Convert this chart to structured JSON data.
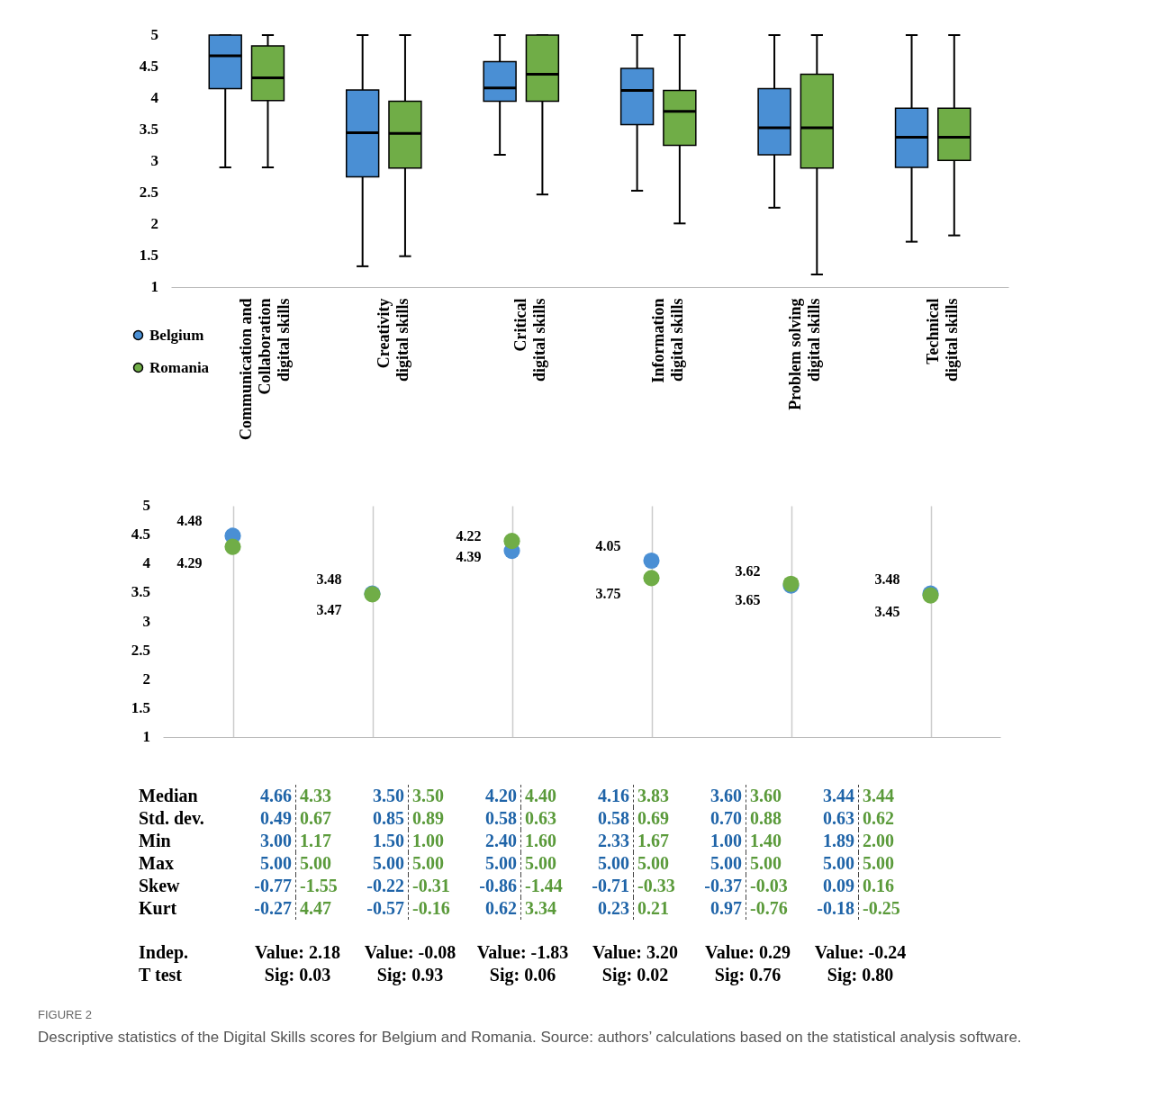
{
  "chart_data": [
    {
      "type": "box",
      "categories": [
        "Communication and\nCollaboration\ndigital skills",
        "Creativity\ndigital skills",
        "Critical\ndigital skills",
        "Information\ndigital skills",
        "Problem solving\ndigital skills",
        "Technical\ndigital skills"
      ],
      "ylim": [
        1,
        5
      ],
      "yticks": [
        1,
        1.5,
        2,
        2.5,
        3,
        3.5,
        4,
        4.5,
        5
      ],
      "legend": "bottom left",
      "series": [
        {
          "name": "Belgium",
          "color": "#4a8fd4",
          "boxes": [
            {
              "low": 2.9,
              "q1": 4.15,
              "median": 4.67,
              "q3": 5,
              "high": 5
            },
            {
              "low": 1.33,
              "q1": 2.75,
              "median": 3.45,
              "q3": 4.13,
              "high": 5
            },
            {
              "low": 3.1,
              "q1": 3.95,
              "median": 4.16,
              "q3": 4.58,
              "high": 5
            },
            {
              "low": 2.53,
              "q1": 3.58,
              "median": 4.12,
              "q3": 4.47,
              "high": 5
            },
            {
              "low": 2.26,
              "q1": 3.1,
              "median": 3.53,
              "q3": 4.15,
              "high": 5
            },
            {
              "low": 1.72,
              "q1": 2.9,
              "median": 3.38,
              "q3": 3.84,
              "high": 5
            }
          ]
        },
        {
          "name": "Romania",
          "color": "#70ad47",
          "boxes": [
            {
              "low": 2.9,
              "q1": 3.96,
              "median": 4.32,
              "q3": 4.83,
              "high": 5
            },
            {
              "low": 1.49,
              "q1": 2.89,
              "median": 3.44,
              "q3": 3.95,
              "high": 5
            },
            {
              "low": 2.47,
              "q1": 3.95,
              "median": 4.38,
              "q3": 5,
              "high": 5
            },
            {
              "low": 2.01,
              "q1": 3.25,
              "median": 3.79,
              "q3": 4.12,
              "high": 5
            },
            {
              "low": 1.2,
              "q1": 2.89,
              "median": 3.53,
              "q3": 4.38,
              "high": 5
            },
            {
              "low": 1.82,
              "q1": 3.01,
              "median": 3.38,
              "q3": 3.84,
              "high": 5
            }
          ]
        }
      ]
    },
    {
      "type": "scatter",
      "categories": [
        null,
        null,
        null,
        null,
        null,
        null
      ],
      "ylim": [
        1,
        5
      ],
      "yticks": [
        1,
        1.5,
        2,
        2.5,
        3,
        3.5,
        4,
        4.5,
        5
      ],
      "grid": "x",
      "marker": "circle",
      "series": [
        {
          "color": "#4a8fd4",
          "values": [
            4.48,
            3.48,
            4.22,
            4.05,
            3.62,
            3.48
          ],
          "value_labels": [
            "4.48",
            "3.48",
            "4.22",
            "4.05",
            "3.62",
            "3.48"
          ]
        },
        {
          "color": "#70ad47",
          "values": [
            4.29,
            3.47,
            4.39,
            3.75,
            3.65,
            3.45
          ],
          "value_labels": [
            "4.29",
            "3.47",
            "4.39",
            "3.75",
            "3.65",
            "3.45"
          ]
        }
      ]
    },
    {
      "type": "other",
      "title": "FIGURE 2",
      "annotations": [
        "Median",
        "4.66",
        "4.33",
        "3.50",
        "3.50",
        "4.20",
        "4.40",
        "4.16",
        "3.83",
        "3.60",
        "3.60",
        "3.44",
        "3.44",
        "Std. dev.",
        "0.49",
        "0.67",
        "0.85",
        "0.89",
        "0.58",
        "0.63",
        "0.58",
        "0.69",
        "0.70",
        "0.88",
        "0.63",
        "0.62",
        "Min",
        "3.00",
        "1.17",
        "1.50",
        "1.00",
        "2.40",
        "1.60",
        "2.33",
        "1.67",
        "1.00",
        "1.40",
        "1.89",
        "2.00",
        "Max",
        "5.00",
        "5.00",
        "5.00",
        "5.00",
        "5.00",
        "5.00",
        "5.00",
        "5.00",
        "5.00",
        "5.00",
        "5.00",
        "5.00",
        "Skew",
        "-0.77",
        "-1.55",
        "-0.22",
        "-0.31",
        "-0.86",
        "-1.44",
        "-0.71",
        "-0.33",
        "-0.37",
        "-0.03",
        "0.09",
        "0.16",
        "Kurt",
        "-0.27",
        "4.47",
        "-0.57",
        "-0.16",
        "0.62",
        "3.34",
        "0.23",
        "0.21",
        "0.97",
        "-0.76",
        "-0.18",
        "-0.25",
        "Indep.",
        "Value: 2.18",
        "Value: -0.08",
        "Value: -1.83",
        "Value: 3.20",
        "Value: 0.29",
        "Value: -0.24",
        "T test",
        "Sig: 0.03",
        "Sig: 0.93",
        "Sig: 0.06",
        "Sig: 0.02",
        "Sig: 0.76",
        "Sig: 0.80",
        "Descriptive statistics of the Digital Skills scores for Belgium and Romania. Source: authors’ calculations based on the statistical analysis software."
      ]
    }
  ]
}
